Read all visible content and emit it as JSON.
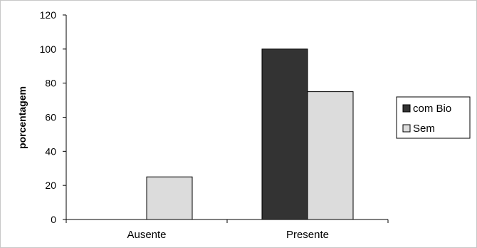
{
  "chart_data": {
    "type": "bar",
    "categories": [
      "Ausente",
      "Presente"
    ],
    "series": [
      {
        "name": "com Bio",
        "values": [
          0,
          100
        ],
        "color": "#333333"
      },
      {
        "name": "Sem",
        "values": [
          25,
          75
        ],
        "color": "#dcdcdc"
      }
    ],
    "title": "",
    "xlabel": "",
    "ylabel": "porcentagem",
    "ylim": [
      0,
      120
    ],
    "yticks": [
      0,
      20,
      40,
      60,
      80,
      100,
      120
    ],
    "grid": false,
    "legend_position": "right"
  }
}
